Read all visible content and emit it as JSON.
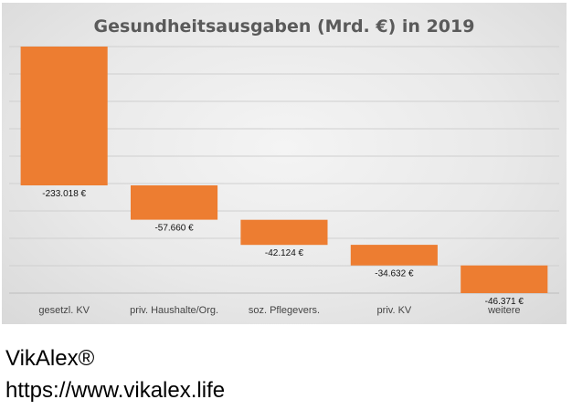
{
  "chart_data": {
    "type": "bar",
    "subtype": "waterfall",
    "title": "Gesundheitsausgaben (Mrd. €) in 2019",
    "xlabel": "",
    "ylabel": "",
    "categories": [
      "gesetzl. KV",
      "priv. Haushalte/Org.",
      "soz. Pflegevers.",
      "priv. KV",
      "weitere"
    ],
    "values": [
      -233.018,
      -57.66,
      -42.124,
      -34.632,
      -46.371
    ],
    "data_labels": [
      "-233.018 €",
      "-57.660 €",
      "-42.124 €",
      "-34.632 €",
      "-46.371 €"
    ],
    "ylim": [
      -413.805,
      0
    ],
    "grid": true,
    "legend": "none",
    "bar_color": "#ed7d31"
  },
  "footer": {
    "brand": "VikAlex®",
    "url": "https://www.vikalex.life"
  }
}
